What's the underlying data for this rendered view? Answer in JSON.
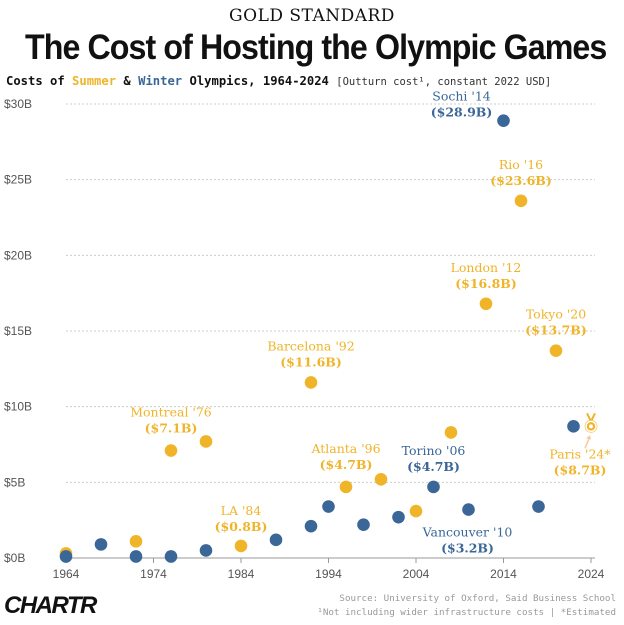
{
  "kicker": "GOLD STANDARD",
  "title": "The Cost of Hosting the Olympic Games",
  "subtitle": {
    "prefix": "Costs of",
    "summer": "Summer",
    "amp": "&",
    "winter": "Winter",
    "suffix": "Olympics, 1964-2024",
    "unit_note": "[Outturn cost¹, constant 2022 USD]"
  },
  "colors": {
    "summer": "#f0b429",
    "winter": "#3a6797",
    "grid": "#cccccc",
    "axis_text": "#555555"
  },
  "chart_data": {
    "type": "scatter",
    "title": "The Cost of Hosting the Olympic Games",
    "xlabel": "",
    "ylabel": "",
    "xlim": [
      1964,
      2024
    ],
    "ylim": [
      0,
      30
    ],
    "x_ticks": [
      1964,
      1974,
      1984,
      1994,
      2004,
      2014,
      2024
    ],
    "y_ticks": [
      0,
      5,
      10,
      15,
      20,
      25,
      30
    ],
    "y_tick_labels": [
      "$0B",
      "$5B",
      "$10B",
      "$15B",
      "$20B",
      "$25B",
      "$30B"
    ],
    "grid": "horizontal",
    "series": [
      {
        "name": "Summer",
        "color": "#f0b429",
        "points": [
          {
            "x": 1964,
            "y": 0.3
          },
          {
            "x": 1972,
            "y": 1.1
          },
          {
            "x": 1976,
            "y": 7.1
          },
          {
            "x": 1980,
            "y": 7.7
          },
          {
            "x": 1984,
            "y": 0.8
          },
          {
            "x": 1992,
            "y": 11.6
          },
          {
            "x": 1996,
            "y": 4.7
          },
          {
            "x": 2000,
            "y": 5.2
          },
          {
            "x": 2004,
            "y": 3.1
          },
          {
            "x": 2008,
            "y": 8.3
          },
          {
            "x": 2012,
            "y": 16.8
          },
          {
            "x": 2016,
            "y": 23.6
          },
          {
            "x": 2020,
            "y": 13.7
          },
          {
            "x": 2024,
            "y": 8.7
          }
        ]
      },
      {
        "name": "Winter",
        "color": "#3a6797",
        "points": [
          {
            "x": 1964,
            "y": 0.1
          },
          {
            "x": 1968,
            "y": 0.9
          },
          {
            "x": 1972,
            "y": 0.1
          },
          {
            "x": 1976,
            "y": 0.1
          },
          {
            "x": 1980,
            "y": 0.5
          },
          {
            "x": 1988,
            "y": 1.2
          },
          {
            "x": 1992,
            "y": 2.1
          },
          {
            "x": 1994,
            "y": 3.4
          },
          {
            "x": 1998,
            "y": 2.2
          },
          {
            "x": 2002,
            "y": 2.7
          },
          {
            "x": 2006,
            "y": 4.7
          },
          {
            "x": 2010,
            "y": 3.2
          },
          {
            "x": 2014,
            "y": 28.9
          },
          {
            "x": 2018,
            "y": 3.4
          },
          {
            "x": 2022,
            "y": 8.7
          }
        ]
      }
    ],
    "annotations": [
      {
        "name": "Sochi '14",
        "value": "($28.9B)",
        "series": "Winter",
        "x": 2014,
        "y": 28.9
      },
      {
        "name": "Rio '16",
        "value": "($23.6B)",
        "series": "Summer",
        "x": 2016,
        "y": 23.6
      },
      {
        "name": "London '12",
        "value": "($16.8B)",
        "series": "Summer",
        "x": 2012,
        "y": 16.8
      },
      {
        "name": "Tokyo '20",
        "value": "($13.7B)",
        "series": "Summer",
        "x": 2020,
        "y": 13.7
      },
      {
        "name": "Barcelona '92",
        "value": "($11.6B)",
        "series": "Summer",
        "x": 1992,
        "y": 11.6
      },
      {
        "name": "Montreal '76",
        "value": "($7.1B)",
        "series": "Summer",
        "x": 1976,
        "y": 7.1
      },
      {
        "name": "Atlanta '96",
        "value": "($4.7B)",
        "series": "Summer",
        "x": 1996,
        "y": 4.7
      },
      {
        "name": "Torino '06",
        "value": "($4.7B)",
        "series": "Winter",
        "x": 2006,
        "y": 4.7
      },
      {
        "name": "LA '84",
        "value": "($0.8B)",
        "series": "Summer",
        "x": 1984,
        "y": 0.8
      },
      {
        "name": "Vancouver '10",
        "value": "($3.2B)",
        "series": "Winter",
        "x": 2010,
        "y": 3.2
      },
      {
        "name": "Paris '24*",
        "value": "($8.7B)",
        "series": "Summer",
        "x": 2024,
        "y": 8.7
      }
    ]
  },
  "footer": {
    "logo": "CHARTR",
    "source": "Source: University of Oxford, Said Business School",
    "notes": "¹Not including wider infrastructure costs | *Estimated"
  }
}
